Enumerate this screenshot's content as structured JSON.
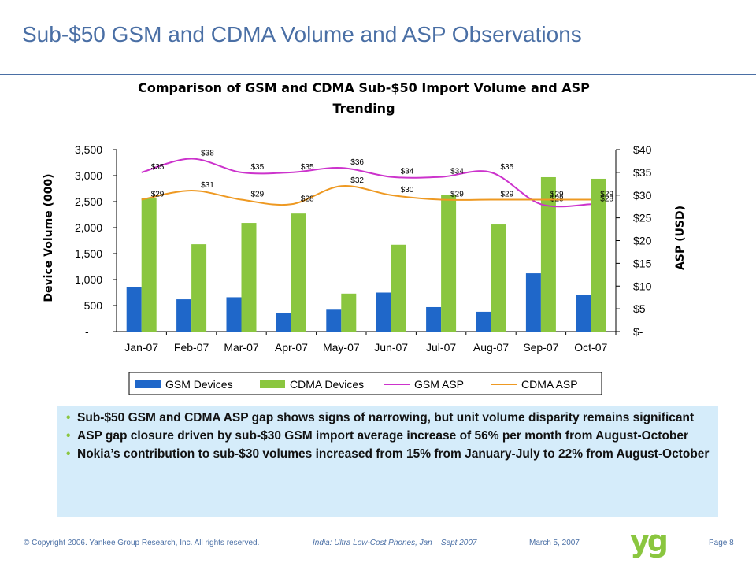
{
  "slide": {
    "title": "Sub-$50 GSM and CDMA Volume and ASP Observations"
  },
  "chart_data": {
    "type": "bar",
    "title_line1": "Comparison of GSM and CDMA Sub-$50 Import Volume and ASP",
    "title_line2": "Trending",
    "ylabel": "Device Volume (000)",
    "y2label": "ASP (USD)",
    "ylim": [
      0,
      3500
    ],
    "y2lim": [
      0,
      40
    ],
    "yticks": [
      "-",
      "500",
      "1,000",
      "1,500",
      "2,000",
      "2,500",
      "3,000",
      "3,500"
    ],
    "y2ticks": [
      "$-",
      "$5",
      "$10",
      "$15",
      "$20",
      "$25",
      "$30",
      "$35",
      "$40"
    ],
    "categories": [
      "Jan-07",
      "Feb-07",
      "Mar-07",
      "Apr-07",
      "May-07",
      "Jun-07",
      "Jul-07",
      "Aug-07",
      "Sep-07",
      "Oct-07"
    ],
    "series": [
      {
        "name": "GSM Devices",
        "kind": "bar",
        "axis": "left",
        "color": "#1f67c9",
        "values": [
          850,
          620,
          660,
          360,
          420,
          750,
          470,
          380,
          1120,
          710
        ]
      },
      {
        "name": "CDMA Devices",
        "kind": "bar",
        "axis": "left",
        "color": "#8ac63f",
        "values": [
          2560,
          1680,
          2090,
          2270,
          730,
          1670,
          2630,
          2060,
          2970,
          2940
        ]
      },
      {
        "name": "GSM ASP",
        "kind": "line",
        "axis": "right",
        "color": "#cc33cc",
        "values": [
          35,
          38,
          35,
          35,
          36,
          34,
          34,
          35,
          28,
          28
        ],
        "labels": [
          "$35",
          "$38",
          "$35",
          "$35",
          "$36",
          "$34",
          "$34",
          "$35",
          "$28",
          "$28"
        ]
      },
      {
        "name": "CDMA ASP",
        "kind": "line",
        "axis": "right",
        "color": "#ee9922",
        "values": [
          29,
          31,
          29,
          28,
          32,
          30,
          29,
          29,
          29,
          29
        ],
        "labels": [
          "$29",
          "$31",
          "$29",
          "$28",
          "$32",
          "$30",
          "$29",
          "$29",
          "$29",
          "$29"
        ]
      }
    ],
    "legend_position": "bottom",
    "grid": false
  },
  "bullets": [
    "Sub-$50 GSM and CDMA ASP gap shows signs of narrowing, but unit volume disparity remains significant",
    "ASP gap closure driven by sub-$30 GSM import average increase of 56% per month from August-October",
    "Nokia’s contribution to sub-$30 volumes increased from 15% from January-July to 22% from August-October"
  ],
  "footer": {
    "copyright": "© Copyright 2006. Yankee Group Research, Inc. All rights reserved.",
    "report": "India: Ultra Low-Cost Phones, Jan – Sept 2007",
    "date": "March 5, 2007",
    "page": "Page 8",
    "logo_text": "yg"
  },
  "colors": {
    "accent": "#4a6fa5",
    "bullet_bg": "#d5ecfa",
    "logo_green": "#8ac63f"
  }
}
